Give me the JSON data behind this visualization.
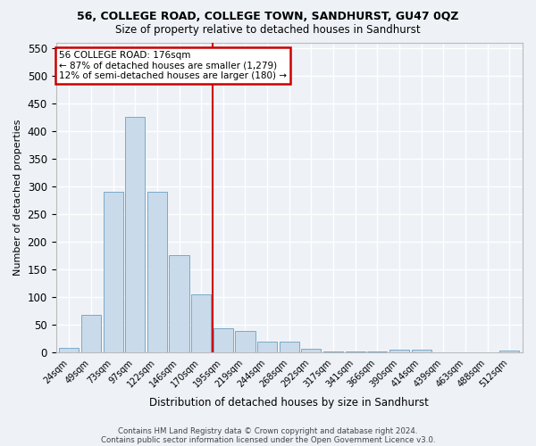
{
  "title": "56, COLLEGE ROAD, COLLEGE TOWN, SANDHURST, GU47 0QZ",
  "subtitle": "Size of property relative to detached houses in Sandhurst",
  "xlabel": "Distribution of detached houses by size in Sandhurst",
  "ylabel": "Number of detached properties",
  "categories": [
    "24sqm",
    "49sqm",
    "73sqm",
    "97sqm",
    "122sqm",
    "146sqm",
    "170sqm",
    "195sqm",
    "219sqm",
    "244sqm",
    "268sqm",
    "292sqm",
    "317sqm",
    "341sqm",
    "366sqm",
    "390sqm",
    "414sqm",
    "439sqm",
    "463sqm",
    "488sqm",
    "512sqm"
  ],
  "values": [
    8,
    68,
    290,
    425,
    290,
    175,
    105,
    43,
    38,
    19,
    19,
    6,
    2,
    1,
    1,
    5,
    5,
    0,
    0,
    0,
    3
  ],
  "bar_color": "#c9daea",
  "bar_edge_color": "#7aaac8",
  "vline_x_index": 6,
  "vline_color": "#cc0000",
  "annotation_title": "56 COLLEGE ROAD: 176sqm",
  "annotation_line1": "← 87% of detached houses are smaller (1,279)",
  "annotation_line2": "12% of semi-detached houses are larger (180) →",
  "annotation_box_color": "#cc0000",
  "ylim": [
    0,
    560
  ],
  "yticks": [
    0,
    50,
    100,
    150,
    200,
    250,
    300,
    350,
    400,
    450,
    500,
    550
  ],
  "footer1": "Contains HM Land Registry data © Crown copyright and database right 2024.",
  "footer2": "Contains public sector information licensed under the Open Government Licence v3.0.",
  "bg_color": "#eef2f7",
  "grid_color": "#ffffff",
  "title_fontsize": 9.0,
  "subtitle_fontsize": 8.5
}
